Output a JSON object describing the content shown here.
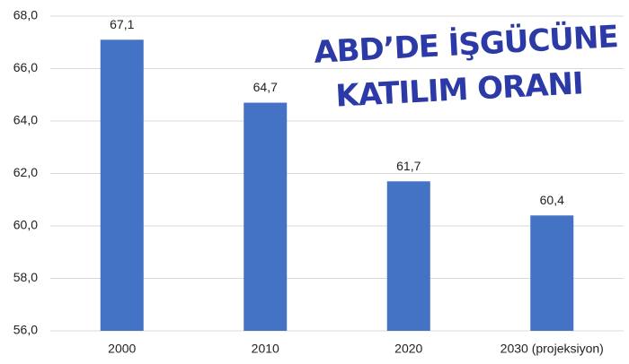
{
  "chart_data": {
    "type": "bar",
    "title": [
      "ABD’DE İŞGÜCÜNE",
      "KATILIM ORANI"
    ],
    "categories": [
      "2000",
      "2010",
      "2020",
      "2030 (projeksiyon)"
    ],
    "values": [
      67.1,
      64.7,
      61.7,
      60.4
    ],
    "value_labels": [
      "67,1",
      "64,7",
      "61,7",
      "60,4"
    ],
    "color": "#4472c4",
    "ylim": [
      56,
      68
    ],
    "yticks": [
      {
        "value": 56,
        "label": "56,0"
      },
      {
        "value": 58,
        "label": "58,0"
      },
      {
        "value": 60,
        "label": "60,0"
      },
      {
        "value": 62,
        "label": "62,0"
      },
      {
        "value": 64,
        "label": "64,0"
      },
      {
        "value": 66,
        "label": "66,0"
      },
      {
        "value": 68,
        "label": "68,0"
      }
    ],
    "grid": true
  }
}
